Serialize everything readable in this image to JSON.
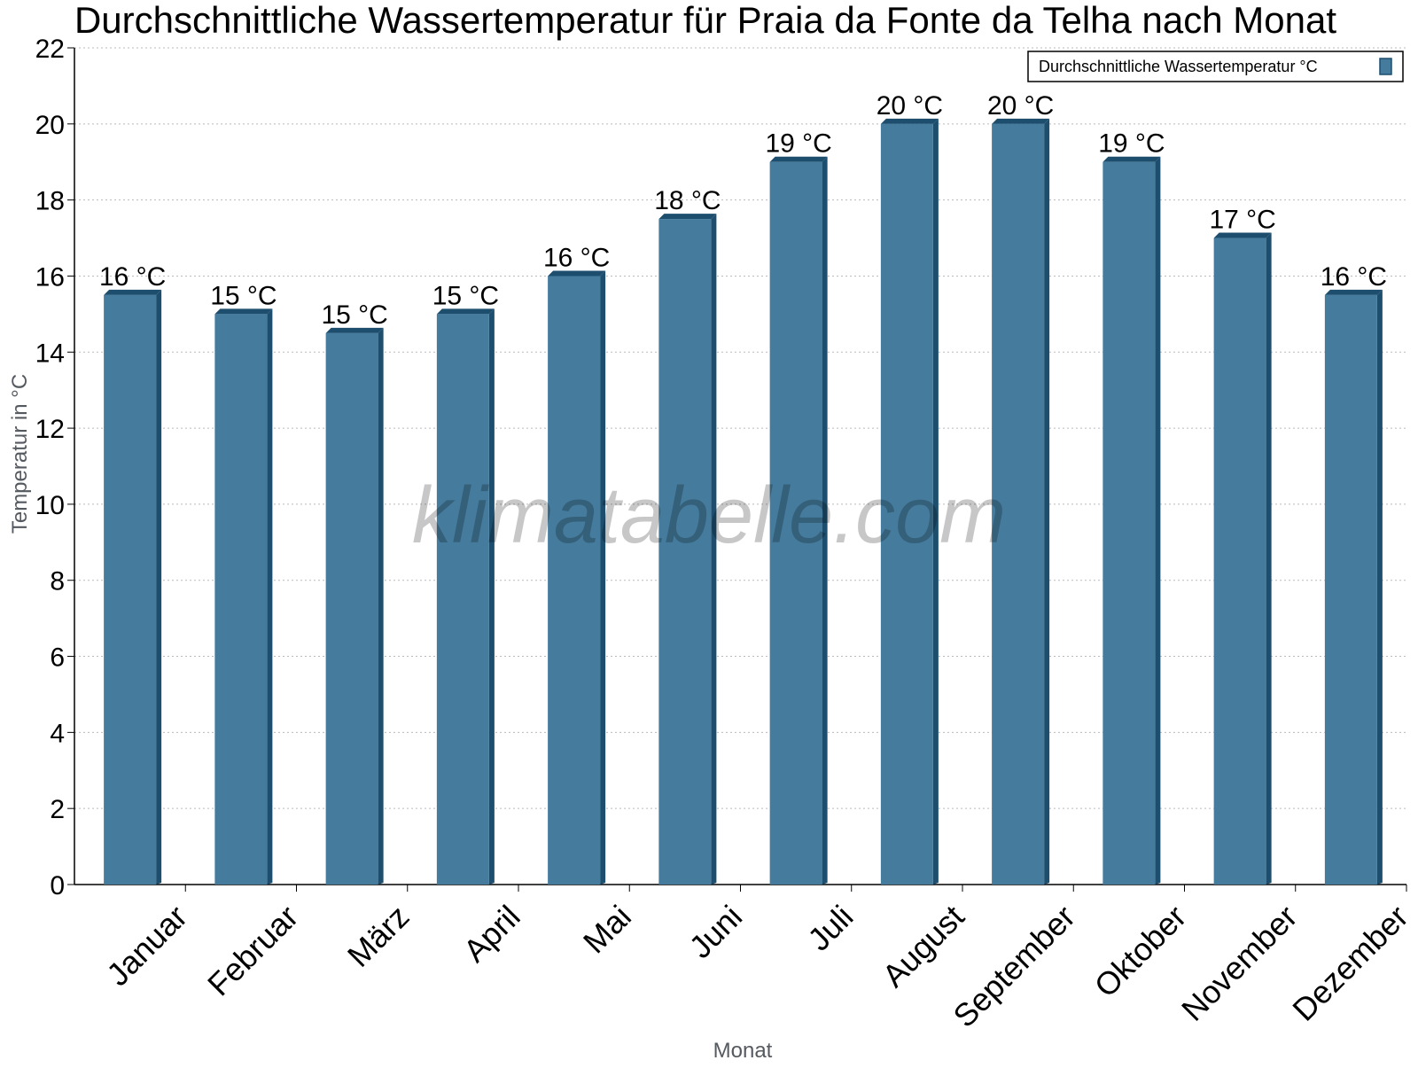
{
  "chart_data": {
    "type": "bar",
    "title": "Durchschnittliche Wassertemperatur für Praia da Fonte da Telha nach Monat",
    "xlabel": "Monat",
    "ylabel": "Temperatur in °C",
    "categories": [
      "Januar",
      "Februar",
      "März",
      "April",
      "Mai",
      "Juni",
      "Juli",
      "August",
      "September",
      "Oktober",
      "November",
      "Dezember"
    ],
    "series": [
      {
        "name": "Durchschnittliche Wassertemperatur °C",
        "values": [
          15.5,
          15,
          14.5,
          15,
          16,
          17.5,
          19,
          20,
          20,
          19,
          17,
          15.5
        ],
        "data_labels": [
          "16 °C",
          "15 °C",
          "15 °C",
          "15 °C",
          "16 °C",
          "18 °C",
          "19 °C",
          "20 °C",
          "20 °C",
          "19 °C",
          "17 °C",
          "16 °C"
        ]
      }
    ],
    "ylim": [
      0,
      22
    ],
    "yticks": [
      0,
      2,
      4,
      6,
      8,
      10,
      12,
      14,
      16,
      18,
      20,
      22
    ],
    "grid": true,
    "legend_position": "top-right",
    "colors": {
      "bar": "#457b9d",
      "bar_dark": "#1d4e6e"
    }
  },
  "watermark": "klimatabelle.com"
}
